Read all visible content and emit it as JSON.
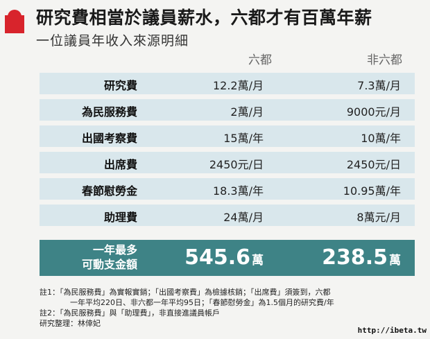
{
  "header": {
    "title": "研究費相當於議員薪水，六都才有百萬年薪",
    "subtitle": "一位議員年收入來源明細"
  },
  "columns": {
    "a": "六都",
    "b": "非六都"
  },
  "rows": [
    {
      "label": "研究費",
      "a": "12.2萬/月",
      "b": "7.3萬/月"
    },
    {
      "label": "為民服務費",
      "a": "2萬/月",
      "b": "9000元/月"
    },
    {
      "label": "出國考察費",
      "a": "15萬/年",
      "b": "10萬/年"
    },
    {
      "label": "出席費",
      "a": "2450元/日",
      "b": "2450元/日"
    },
    {
      "label": "春節慰勞金",
      "a": "18.3萬/年",
      "b": "10.95萬/年"
    },
    {
      "label": "助理費",
      "a": "24萬/月",
      "b": "8萬元/月"
    }
  ],
  "total": {
    "label_line1": "一年最多",
    "label_line2": "可動支金額",
    "a_value": "545.6",
    "b_value": "238.5",
    "unit": "萬"
  },
  "notes": {
    "line1": "註1：「為民服務費」為實報實銷；「出國考察費」為檢據核銷；「出席費」須簽到，六都",
    "line2": "一年平均220日、非六都一年平均95日；「春節慰勞金」為1.5個月的研究費/年",
    "line3": "註2：「為民服務費」與「助理費」，非直接進議員帳戶",
    "line4": "研究整理：林倖妃"
  },
  "watermark": "http://ibeta.tw"
}
